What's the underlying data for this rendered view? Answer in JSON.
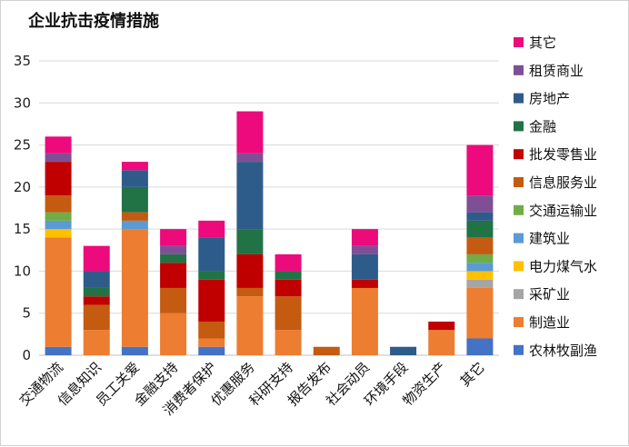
{
  "chart_data": {
    "type": "bar",
    "stacked": true,
    "title": "企业抗击疫情措施",
    "xlabel": "",
    "ylabel": "",
    "ylim": [
      0,
      35
    ],
    "yticks": [
      0,
      5,
      10,
      15,
      20,
      25,
      30,
      35
    ],
    "grid": true,
    "legend_position": "right",
    "categories": [
      "交通物流",
      "信息知识",
      "员工关爱",
      "金融支持",
      "消费者保护",
      "优惠服务",
      "科研支持",
      "报告发布",
      "社会动员",
      "环境手段",
      "物资生产",
      "其它"
    ],
    "series": [
      {
        "name": "农林牧副渔",
        "color": "#4472C4",
        "values": [
          1,
          0,
          1,
          0,
          1,
          0,
          0,
          0,
          0,
          0,
          0,
          2
        ]
      },
      {
        "name": "制造业",
        "color": "#ED7D31",
        "values": [
          13,
          3,
          14,
          5,
          1,
          7,
          3,
          0,
          8,
          0,
          3,
          6
        ]
      },
      {
        "name": "采矿业",
        "color": "#A5A5A5",
        "values": [
          0,
          0,
          0,
          0,
          0,
          0,
          0,
          0,
          0,
          0,
          0,
          1
        ]
      },
      {
        "name": "电力煤气水",
        "color": "#FFC000",
        "values": [
          1,
          0,
          0,
          0,
          0,
          0,
          0,
          0,
          0,
          0,
          0,
          1
        ]
      },
      {
        "name": "建筑业",
        "color": "#5B9BD5",
        "values": [
          1,
          0,
          1,
          0,
          0,
          0,
          0,
          0,
          0,
          0,
          0,
          1
        ]
      },
      {
        "name": "交通运输业",
        "color": "#70AD47",
        "values": [
          1,
          0,
          0,
          0,
          0,
          0,
          0,
          0,
          0,
          0,
          0,
          1
        ]
      },
      {
        "name": "信息服务业",
        "color": "#C55A11",
        "values": [
          2,
          3,
          1,
          3,
          2,
          1,
          4,
          1,
          0,
          0,
          0,
          2
        ]
      },
      {
        "name": "批发零售业",
        "color": "#C00000",
        "values": [
          4,
          1,
          0,
          3,
          5,
          4,
          2,
          0,
          1,
          0,
          1,
          0
        ]
      },
      {
        "name": "金融",
        "color": "#217346",
        "values": [
          0,
          1,
          3,
          1,
          1,
          3,
          1,
          0,
          0,
          0,
          0,
          2
        ]
      },
      {
        "name": "房地产",
        "color": "#2E5C8A",
        "values": [
          0,
          2,
          2,
          0,
          4,
          8,
          0,
          0,
          3,
          1,
          0,
          1
        ]
      },
      {
        "name": "租赁商业",
        "color": "#7F4F96",
        "values": [
          1,
          0,
          0,
          1,
          0,
          1,
          0,
          0,
          1,
          0,
          0,
          2
        ]
      },
      {
        "name": "其它",
        "color": "#EC0A7D",
        "values": [
          2,
          3,
          1,
          2,
          2,
          5,
          2,
          0,
          2,
          0,
          0,
          6
        ]
      }
    ]
  }
}
